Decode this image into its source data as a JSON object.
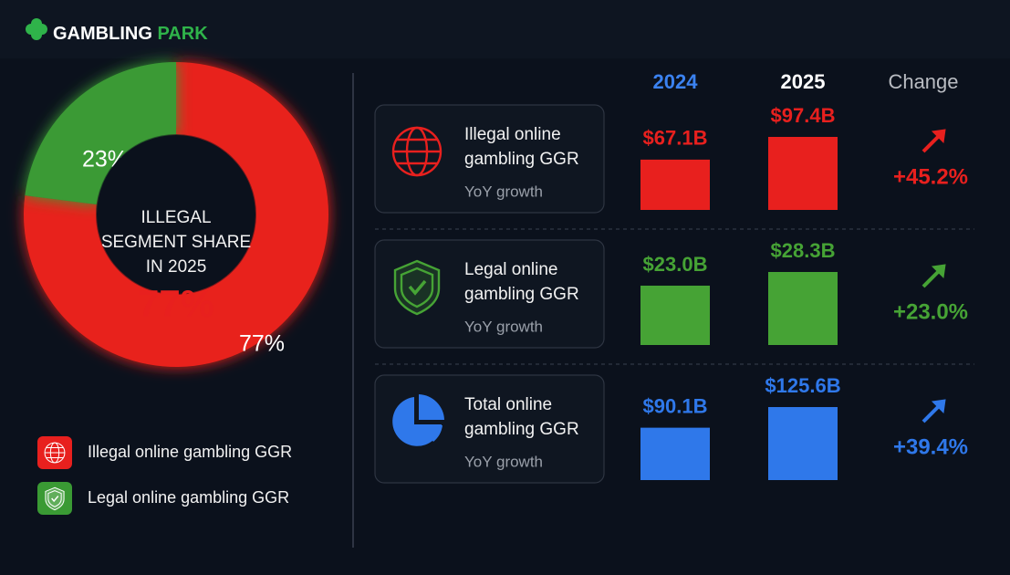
{
  "brand": "GAMBLING PARK",
  "chart_data": [
    {
      "type": "pie",
      "center_label": [
        "ILLEGAL",
        "SEGMENT SHARE",
        "IN 2025"
      ],
      "categories": [
        "Illegal online gambling GGR",
        "Legal online gambling GGR"
      ],
      "values": [
        77,
        23
      ],
      "value_labels": [
        "77%",
        "23%"
      ],
      "colors": [
        "#e8201e",
        "#3a9a34"
      ]
    },
    {
      "type": "bar",
      "columns": [
        "2024",
        "2025",
        "Change"
      ],
      "column_colors": [
        "#3b82f0",
        "#ffffff",
        "#b9bcc2"
      ],
      "series": [
        {
          "name": "Illegal online gambling GGR",
          "subtitle": "YoY growth",
          "color": "#e8201e",
          "values": [
            67.1,
            97.4
          ],
          "value_labels": [
            "$67.1B",
            "$97.4B"
          ],
          "change": 45.2,
          "change_label": "+45.2%"
        },
        {
          "name": "Legal online gambling GGR",
          "subtitle": "YoY growth",
          "color": "#46a335",
          "values": [
            23.0,
            28.3
          ],
          "value_labels": [
            "$23.0B",
            "$28.3B"
          ],
          "change": 23.0,
          "change_label": "+23.0%"
        },
        {
          "name": "Total online gambling GGR",
          "subtitle": "YoY growth",
          "color": "#2f78ea",
          "values": [
            90.1,
            125.6
          ],
          "value_labels": [
            "$90.1B",
            "$125.6B"
          ],
          "change": 39.4,
          "change_label": "+39.4%"
        }
      ]
    }
  ]
}
